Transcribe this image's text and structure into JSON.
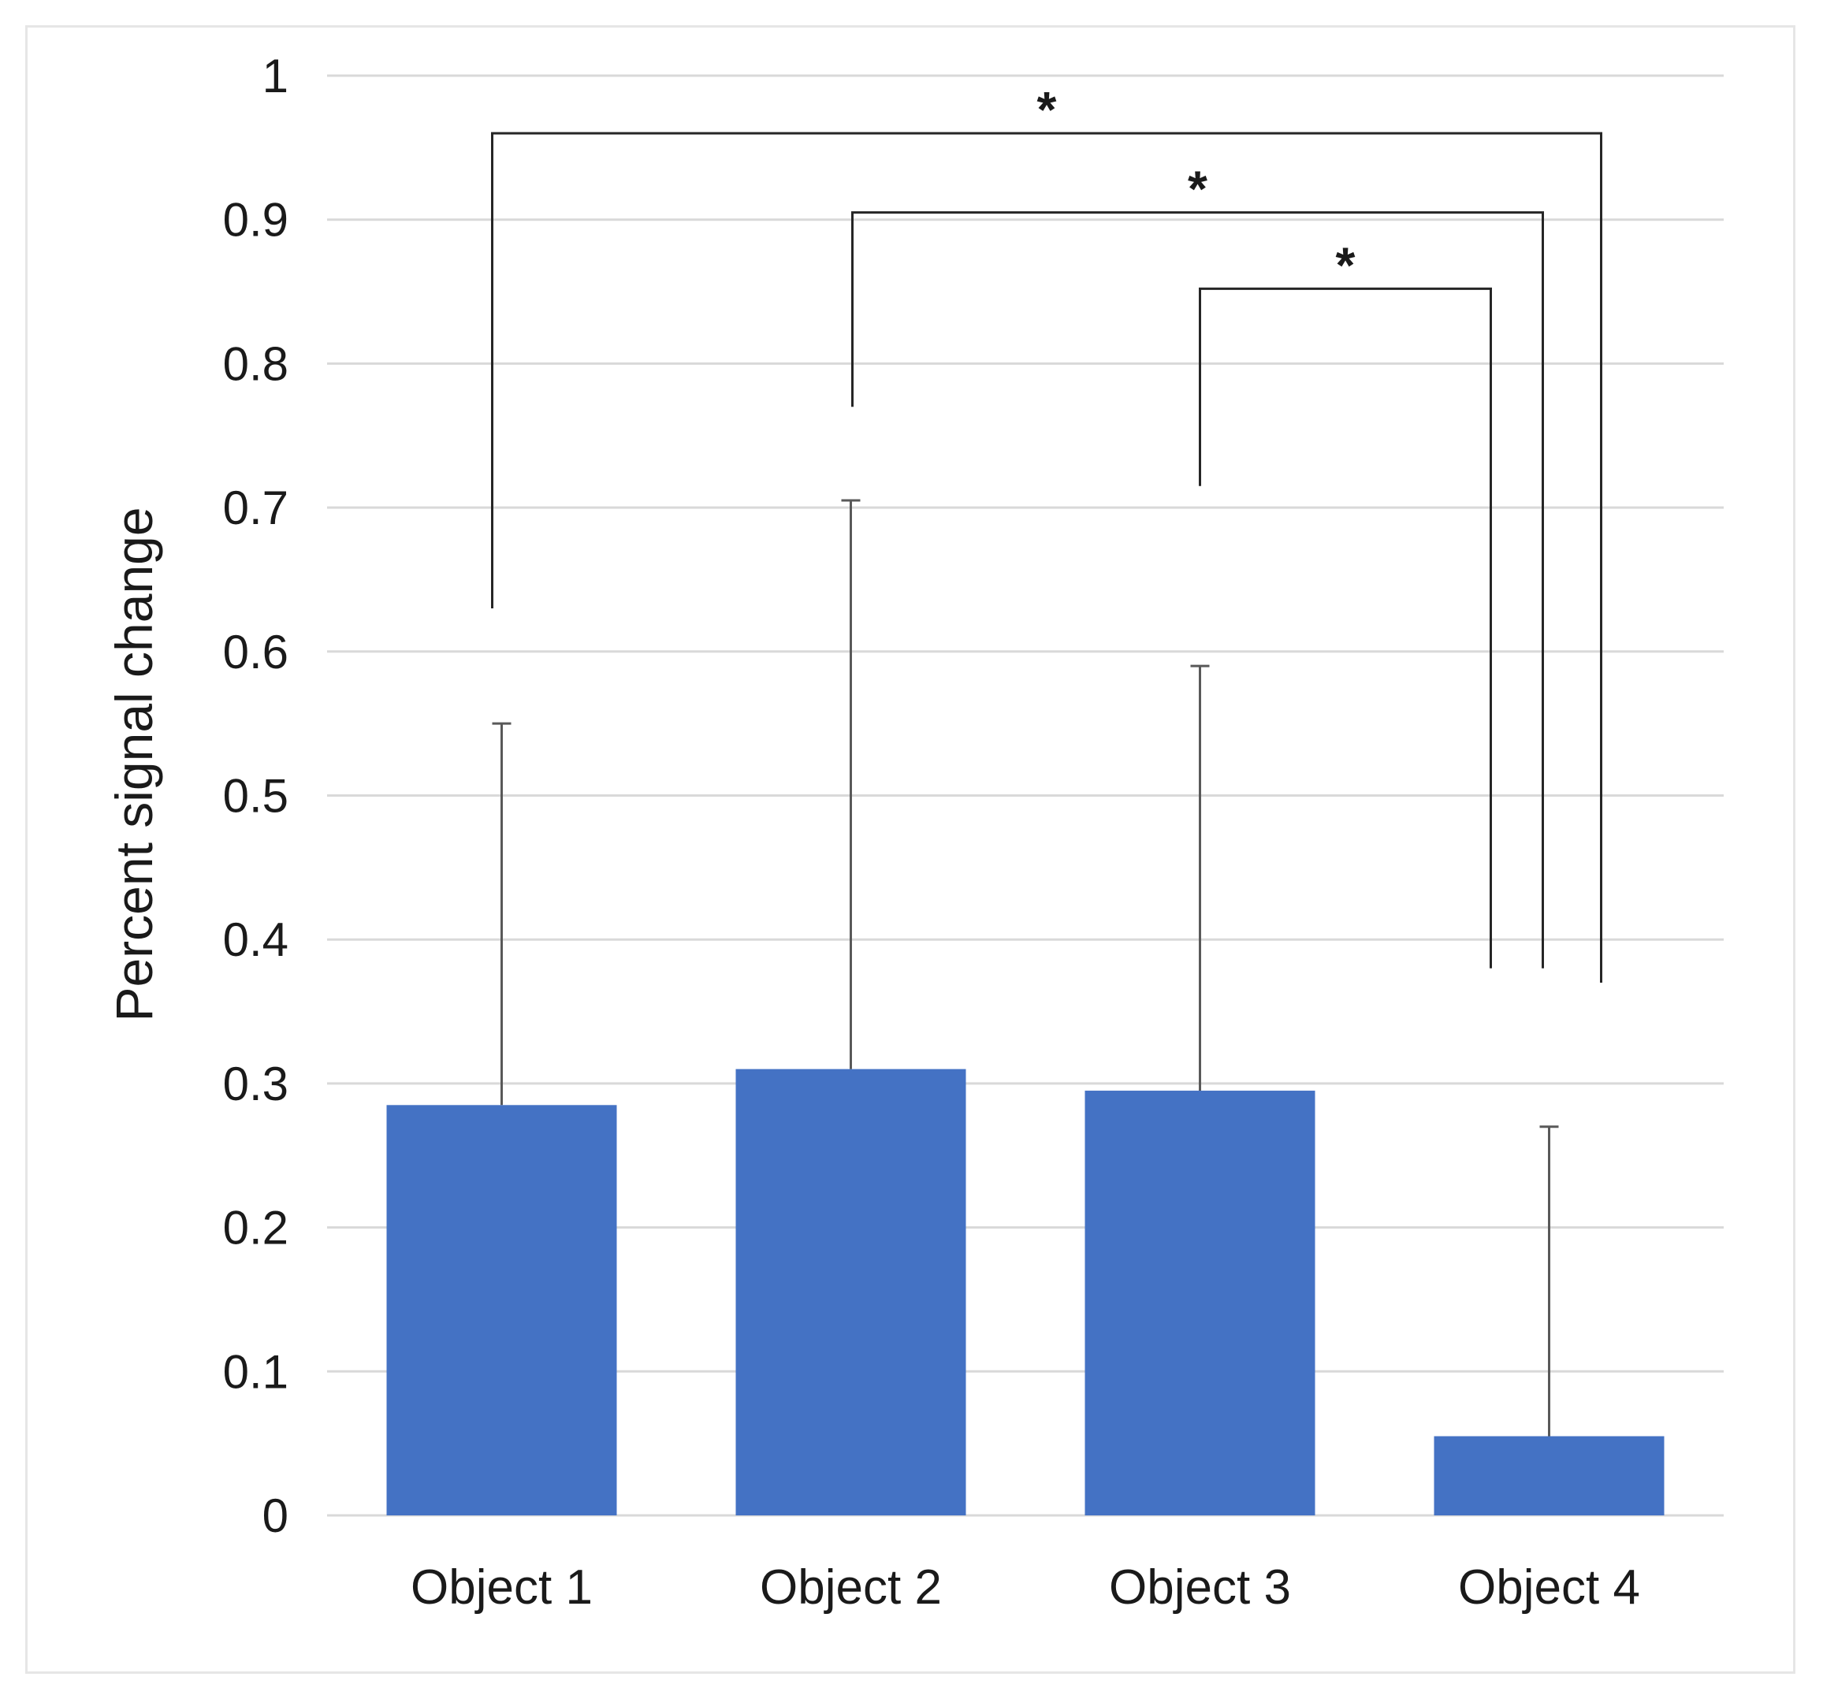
{
  "chart_data": {
    "type": "bar",
    "categories": [
      "Object 1",
      "Object 2",
      "Object 3",
      "Object 4"
    ],
    "values": [
      0.285,
      0.31,
      0.295,
      0.055
    ],
    "error_upper": [
      0.55,
      0.705,
      0.59,
      0.27
    ],
    "title": "",
    "xlabel": "",
    "ylabel": "Percent signal change",
    "ylim": [
      0,
      1
    ],
    "yticks": [
      0,
      0.1,
      0.2,
      0.3,
      0.4,
      0.5,
      0.6,
      0.7,
      0.8,
      0.9,
      1
    ],
    "ytick_labels": [
      "0",
      "0.1",
      "0.2",
      "0.3",
      "0.4",
      "0.5",
      "0.6",
      "0.7",
      "0.8",
      "0.9",
      "1"
    ],
    "grid": true,
    "legend": "none",
    "bar_color": "#4472c4",
    "gridline_color": "#d9d9d9",
    "error_bar_color": "#595959",
    "significance": [
      {
        "from": "Object 1",
        "to": "Object 4",
        "label": "*",
        "bracket_y": 0.96,
        "left_drop_to": 0.63,
        "right_drop_to": 0.37
      },
      {
        "from": "Object 2",
        "to": "Object 4",
        "label": "*",
        "bracket_y": 0.905,
        "left_drop_to": 0.77,
        "right_drop_to": 0.38
      },
      {
        "from": "Object 3",
        "to": "Object 4",
        "label": "*",
        "bracket_y": 0.852,
        "left_drop_to": 0.715,
        "right_drop_to": 0.38
      }
    ]
  }
}
